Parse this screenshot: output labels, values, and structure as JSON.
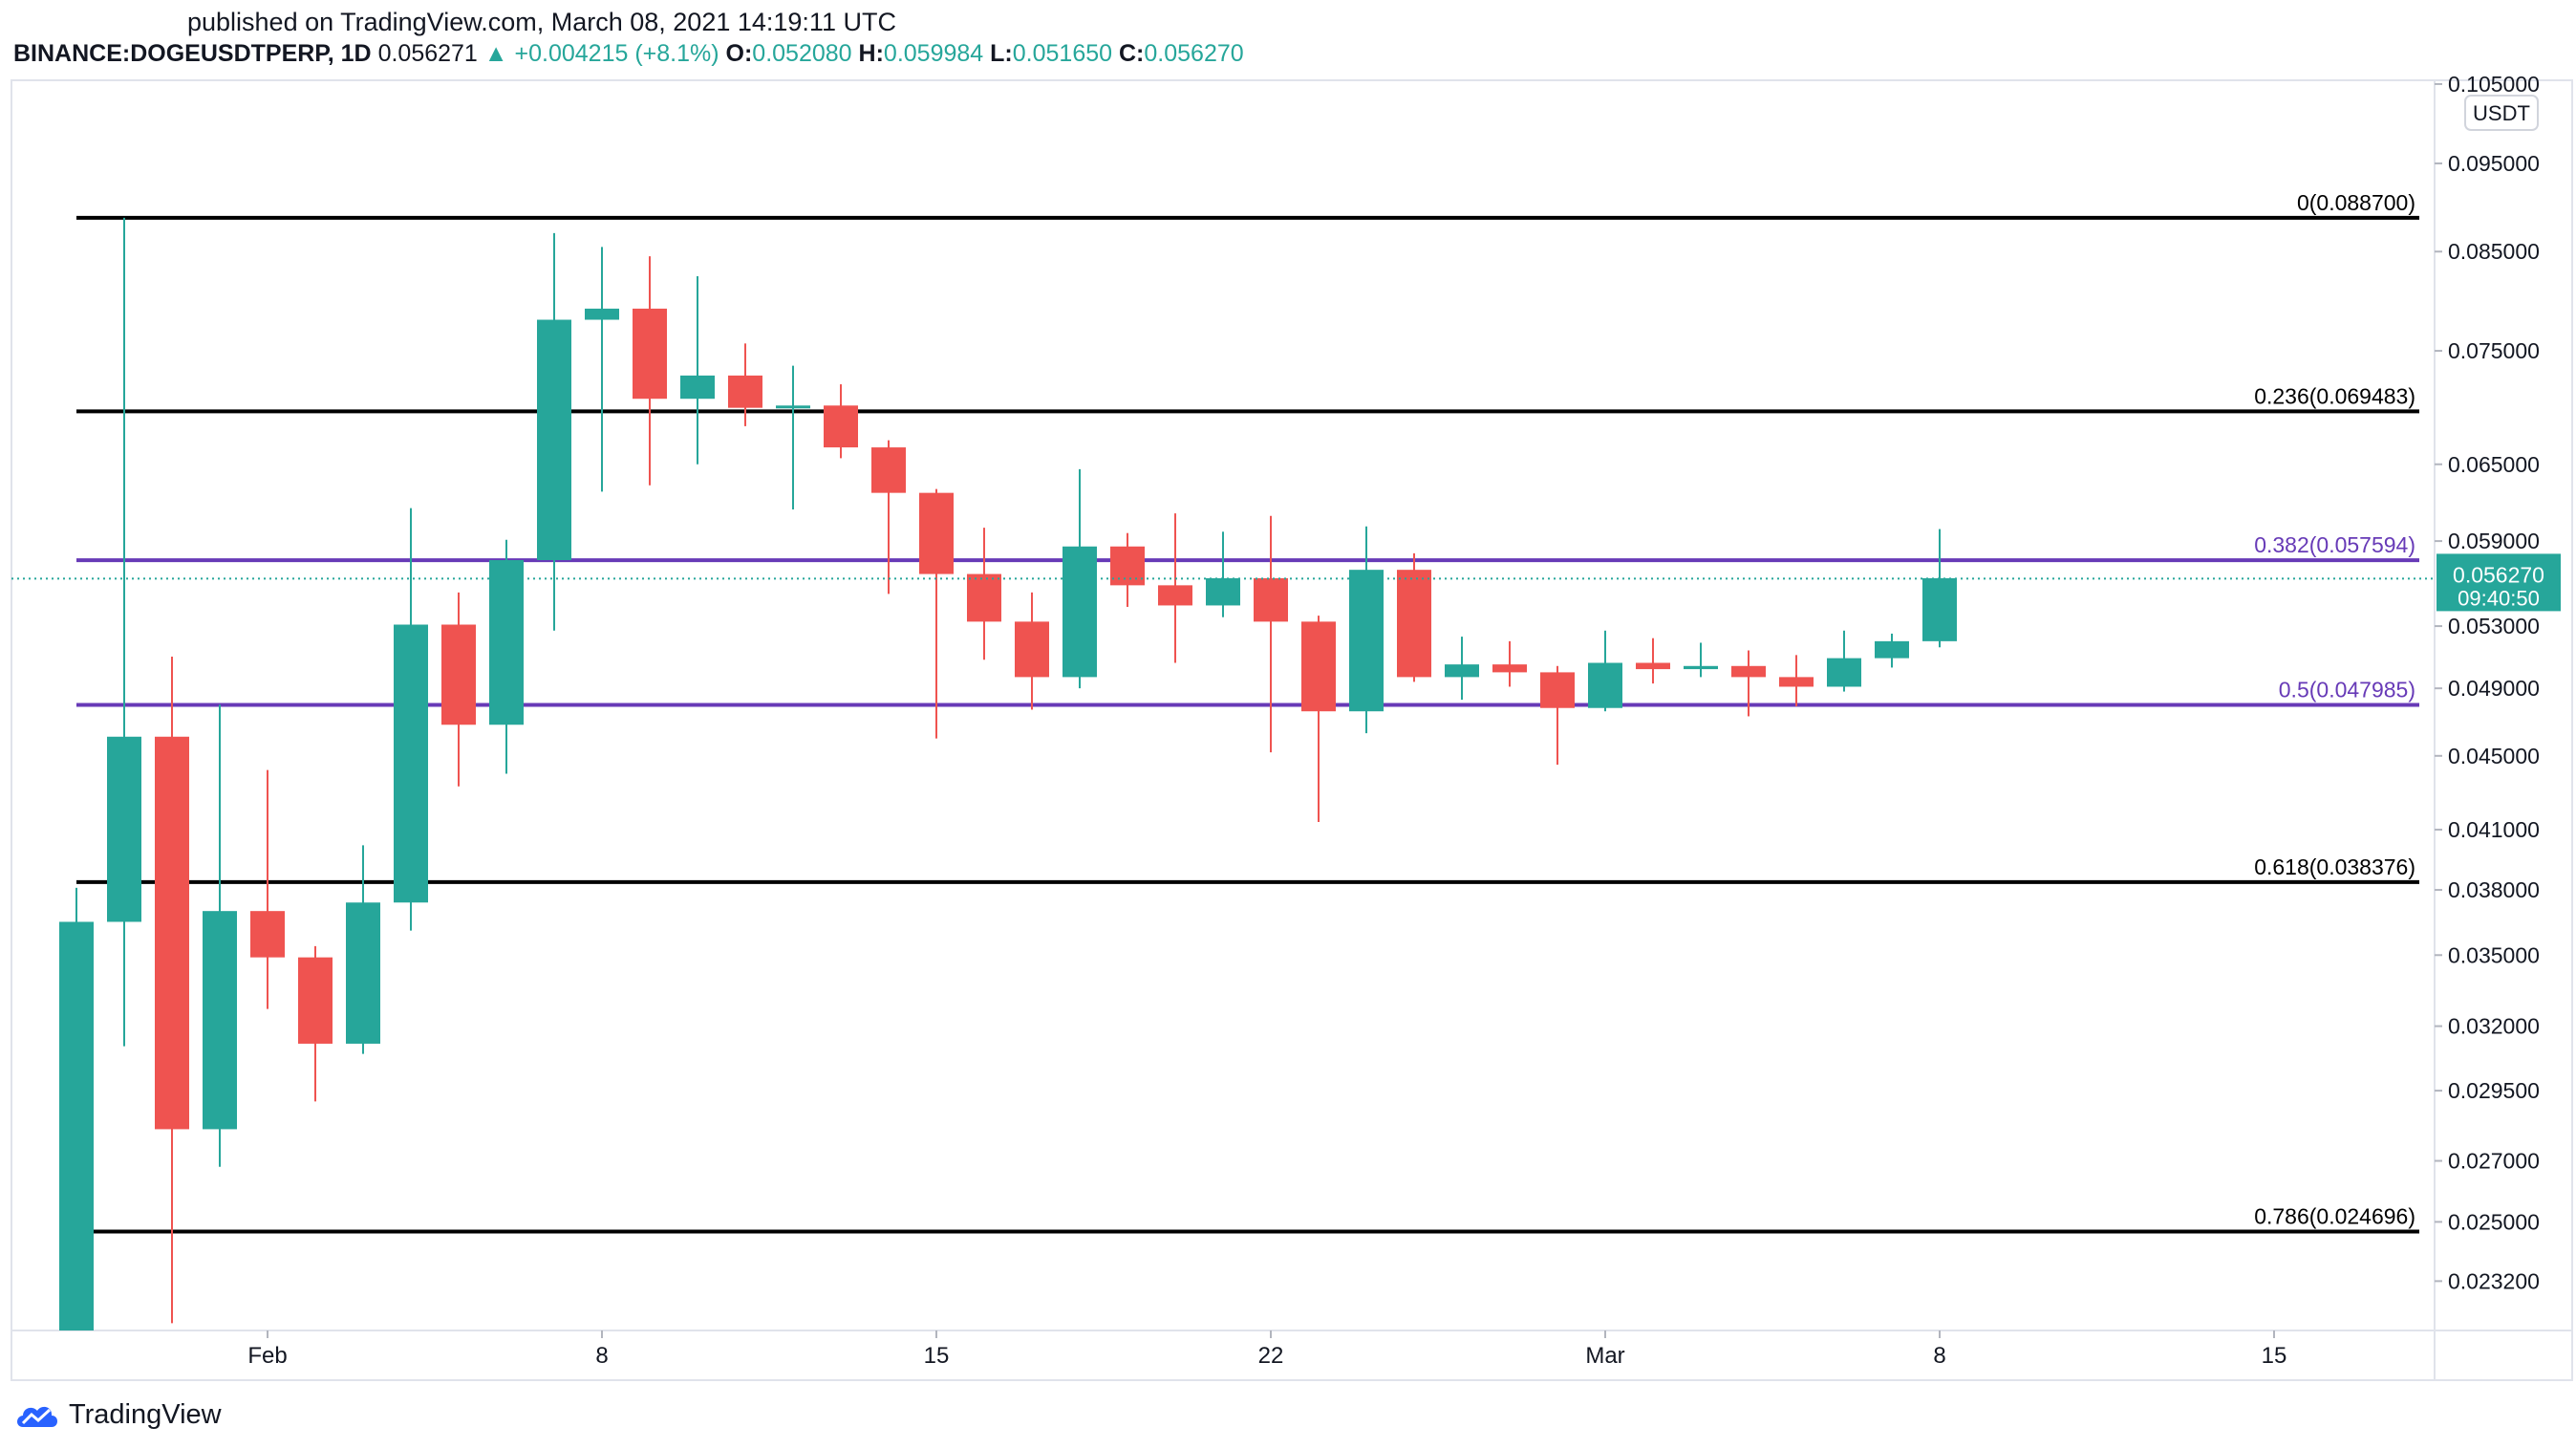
{
  "header": {
    "published": "published on TradingView.com, March 08, 2021 14:19:11 UTC",
    "symbol": "BINANCE:DOGEUSDTPERP, 1D",
    "last": "0.056271",
    "change_arrow": "▲",
    "change": "+0.004215 (+8.1%)",
    "o_label": "O:",
    "o": "0.052080",
    "h_label": "H:",
    "h": "0.059984",
    "l_label": "L:",
    "l": "0.051650",
    "c_label": "C:",
    "c": "0.056270"
  },
  "footer": {
    "brand": "TradingView",
    "logo_icon": "tradingview-cloud-icon"
  },
  "colors": {
    "up": "#26a69a",
    "down": "#ef5350",
    "fib_black": "#000000",
    "fib_purple": "#673ab7",
    "grid": "#e0e3eb"
  },
  "chart_data": {
    "type": "candlestick",
    "currency": "USDT",
    "x_ticks": [
      "Feb",
      "8",
      "15",
      "22",
      "Mar",
      "8",
      "15"
    ],
    "y_ticks": [
      "0.105000",
      "0.095000",
      "0.085000",
      "0.075000",
      "0.065000",
      "0.059000",
      "0.053000",
      "0.049000",
      "0.045000",
      "0.041000",
      "0.038000",
      "0.035000",
      "0.032000",
      "0.029500",
      "0.027000",
      "0.025000",
      "0.023200"
    ],
    "y_scale": "log",
    "ylim": [
      0.0218,
      0.1055
    ],
    "current_price": {
      "label": "0.056270",
      "countdown": "09:40:50",
      "value": 0.05627
    },
    "fib_levels": [
      {
        "label": "0(0.088700)",
        "value": 0.0887,
        "color": "black"
      },
      {
        "label": "0.236(0.069483)",
        "value": 0.069483,
        "color": "black"
      },
      {
        "label": "0.382(0.057594)",
        "value": 0.057594,
        "color": "purple"
      },
      {
        "label": "0.5(0.047985)",
        "value": 0.047985,
        "color": "purple"
      },
      {
        "label": "0.618(0.038376)",
        "value": 0.038376,
        "color": "black"
      },
      {
        "label": "0.786(0.024696)",
        "value": 0.024696,
        "color": "black"
      }
    ],
    "candles": [
      {
        "date": "2021-01-28",
        "o": 0.0217,
        "h": 0.0381,
        "l": 0.0217,
        "c": 0.0365
      },
      {
        "date": "2021-01-29",
        "o": 0.0365,
        "h": 0.0887,
        "l": 0.0312,
        "c": 0.0461
      },
      {
        "date": "2021-01-30",
        "o": 0.0461,
        "h": 0.051,
        "l": 0.022,
        "c": 0.0281
      },
      {
        "date": "2021-01-31",
        "o": 0.0281,
        "h": 0.048,
        "l": 0.0268,
        "c": 0.037
      },
      {
        "date": "2021-02-01",
        "o": 0.037,
        "h": 0.0442,
        "l": 0.0327,
        "c": 0.0349
      },
      {
        "date": "2021-02-02",
        "o": 0.0349,
        "h": 0.0354,
        "l": 0.0291,
        "c": 0.0313
      },
      {
        "date": "2021-02-03",
        "o": 0.0313,
        "h": 0.0402,
        "l": 0.0309,
        "c": 0.0374
      },
      {
        "date": "2021-02-04",
        "o": 0.0374,
        "h": 0.0615,
        "l": 0.0361,
        "c": 0.0531
      },
      {
        "date": "2021-02-05",
        "o": 0.0531,
        "h": 0.0553,
        "l": 0.0433,
        "c": 0.0468
      },
      {
        "date": "2021-02-06",
        "o": 0.0468,
        "h": 0.0591,
        "l": 0.044,
        "c": 0.0576
      },
      {
        "date": "2021-02-07",
        "o": 0.0576,
        "h": 0.087,
        "l": 0.0527,
        "c": 0.078
      },
      {
        "date": "2021-02-08",
        "o": 0.078,
        "h": 0.0855,
        "l": 0.0628,
        "c": 0.0791
      },
      {
        "date": "2021-02-09",
        "o": 0.0791,
        "h": 0.0845,
        "l": 0.0633,
        "c": 0.0706
      },
      {
        "date": "2021-02-10",
        "o": 0.0706,
        "h": 0.0824,
        "l": 0.065,
        "c": 0.0727
      },
      {
        "date": "2021-02-11",
        "o": 0.0727,
        "h": 0.0757,
        "l": 0.0682,
        "c": 0.0698
      },
      {
        "date": "2021-02-12",
        "o": 0.0698,
        "h": 0.0736,
        "l": 0.0614,
        "c": 0.07
      },
      {
        "date": "2021-02-13",
        "o": 0.07,
        "h": 0.0719,
        "l": 0.0655,
        "c": 0.0664
      },
      {
        "date": "2021-02-14",
        "o": 0.0664,
        "h": 0.067,
        "l": 0.0552,
        "c": 0.0627
      },
      {
        "date": "2021-02-15",
        "o": 0.0627,
        "h": 0.063,
        "l": 0.046,
        "c": 0.0566
      },
      {
        "date": "2021-02-16",
        "o": 0.0566,
        "h": 0.06,
        "l": 0.0508,
        "c": 0.0533
      },
      {
        "date": "2021-02-17",
        "o": 0.0533,
        "h": 0.0553,
        "l": 0.0477,
        "c": 0.0497
      },
      {
        "date": "2021-02-18",
        "o": 0.0497,
        "h": 0.0646,
        "l": 0.049,
        "c": 0.0586
      },
      {
        "date": "2021-02-19",
        "o": 0.0586,
        "h": 0.0596,
        "l": 0.0543,
        "c": 0.0558
      },
      {
        "date": "2021-02-20",
        "o": 0.0558,
        "h": 0.0611,
        "l": 0.0506,
        "c": 0.0544
      },
      {
        "date": "2021-02-21",
        "o": 0.0544,
        "h": 0.0597,
        "l": 0.0536,
        "c": 0.0563
      },
      {
        "date": "2021-02-22",
        "o": 0.0563,
        "h": 0.0609,
        "l": 0.0452,
        "c": 0.0533
      },
      {
        "date": "2021-02-23",
        "o": 0.0533,
        "h": 0.0537,
        "l": 0.0414,
        "c": 0.0476
      },
      {
        "date": "2021-02-24",
        "o": 0.0476,
        "h": 0.0601,
        "l": 0.0463,
        "c": 0.0569
      },
      {
        "date": "2021-02-25",
        "o": 0.0569,
        "h": 0.0581,
        "l": 0.0494,
        "c": 0.0497
      },
      {
        "date": "2021-02-26",
        "o": 0.0497,
        "h": 0.0523,
        "l": 0.0483,
        "c": 0.0505
      },
      {
        "date": "2021-02-27",
        "o": 0.0505,
        "h": 0.052,
        "l": 0.0491,
        "c": 0.05
      },
      {
        "date": "2021-02-28",
        "o": 0.05,
        "h": 0.0504,
        "l": 0.0445,
        "c": 0.0478
      },
      {
        "date": "2021-03-01",
        "o": 0.0478,
        "h": 0.0527,
        "l": 0.0476,
        "c": 0.0506
      },
      {
        "date": "2021-03-02",
        "o": 0.0506,
        "h": 0.0522,
        "l": 0.0493,
        "c": 0.0502
      },
      {
        "date": "2021-03-03",
        "o": 0.0502,
        "h": 0.0519,
        "l": 0.0497,
        "c": 0.0504
      },
      {
        "date": "2021-03-04",
        "o": 0.0504,
        "h": 0.0514,
        "l": 0.0473,
        "c": 0.0497
      },
      {
        "date": "2021-03-05",
        "o": 0.0497,
        "h": 0.0511,
        "l": 0.0479,
        "c": 0.0491
      },
      {
        "date": "2021-03-06",
        "o": 0.0491,
        "h": 0.0527,
        "l": 0.0488,
        "c": 0.0509
      },
      {
        "date": "2021-03-07",
        "o": 0.0509,
        "h": 0.0525,
        "l": 0.0503,
        "c": 0.052
      },
      {
        "date": "2021-03-08",
        "o": 0.052,
        "h": 0.0599,
        "l": 0.0516,
        "c": 0.0563
      }
    ]
  }
}
